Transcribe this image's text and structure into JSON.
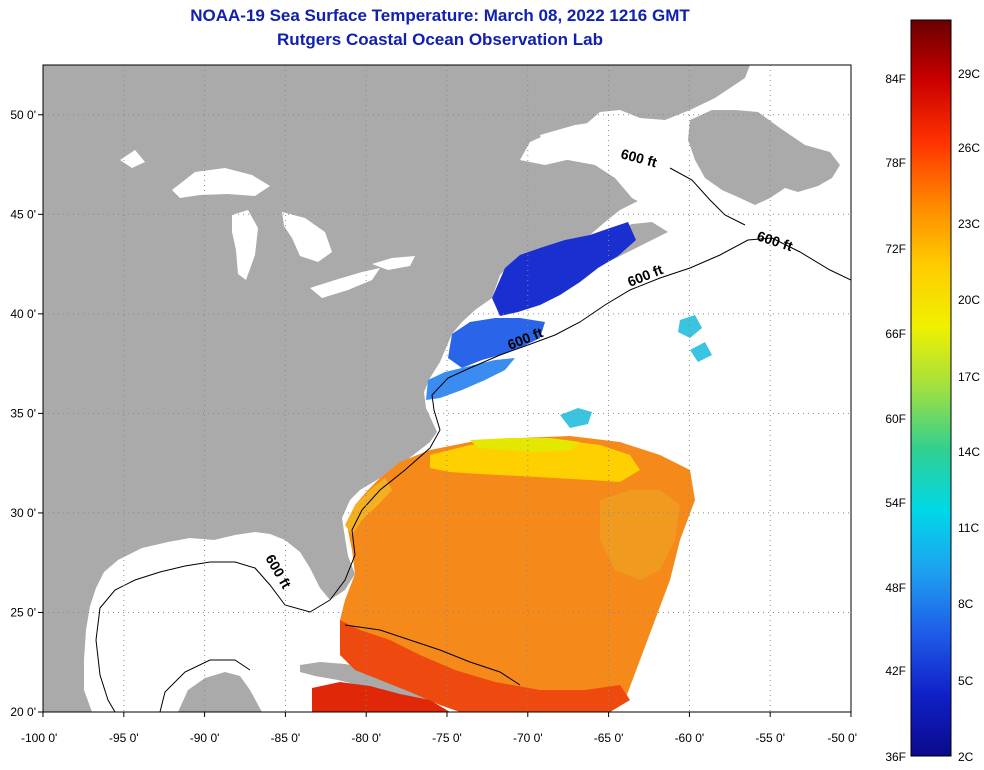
{
  "header": {
    "title": "NOAA-19 Sea Surface Temperature:  March 08, 2022 1216 GMT",
    "subtitle": "Rutgers Coastal Ocean Observation Lab"
  },
  "map": {
    "lat_range": [
      20,
      52.5
    ],
    "lon_range": [
      -100,
      -50
    ],
    "lat_ticks": [
      {
        "value": 20,
        "label": "20 0'"
      },
      {
        "value": 25,
        "label": "25 0'"
      },
      {
        "value": 30,
        "label": "30 0'"
      },
      {
        "value": 35,
        "label": "35 0'"
      },
      {
        "value": 40,
        "label": "40 0'"
      },
      {
        "value": 45,
        "label": "45 0'"
      },
      {
        "value": 50,
        "label": "50 0'"
      }
    ],
    "lon_ticks": [
      {
        "value": -100,
        "label": "-100 0'"
      },
      {
        "value": -95,
        "label": "-95 0'"
      },
      {
        "value": -90,
        "label": "-90 0'"
      },
      {
        "value": -85,
        "label": "-85 0'"
      },
      {
        "value": -80,
        "label": "-80 0'"
      },
      {
        "value": -75,
        "label": "-75 0'"
      },
      {
        "value": -70,
        "label": "-70 0'"
      },
      {
        "value": -65,
        "label": "-65 0'"
      },
      {
        "value": -60,
        "label": "-60 0'"
      },
      {
        "value": -55,
        "label": "-55 0'"
      },
      {
        "value": -50,
        "label": "-50 0'"
      }
    ],
    "contour_labels": [
      "600 ft",
      "600 ft",
      "600 ft",
      "600 ft",
      "600 ft"
    ],
    "colors": {
      "land": "#aaaaaa",
      "water": "#ffffff",
      "grid": "#888888"
    }
  },
  "colorbar": {
    "fahrenheit": [
      "84F",
      "78F",
      "72F",
      "66F",
      "60F",
      "54F",
      "48F",
      "42F",
      "36F"
    ],
    "celsius": [
      "29C",
      "26C",
      "23C",
      "20C",
      "17C",
      "14C",
      "11C",
      "8C",
      "5C",
      "2C"
    ],
    "colors": [
      "#6a0000",
      "#cc0000",
      "#ff3300",
      "#ff8800",
      "#ffcc00",
      "#f0f000",
      "#a0e040",
      "#30d090",
      "#00d8e8",
      "#1ea0f0",
      "#1e5ce8",
      "#1020c8",
      "#0a0a8c"
    ]
  }
}
